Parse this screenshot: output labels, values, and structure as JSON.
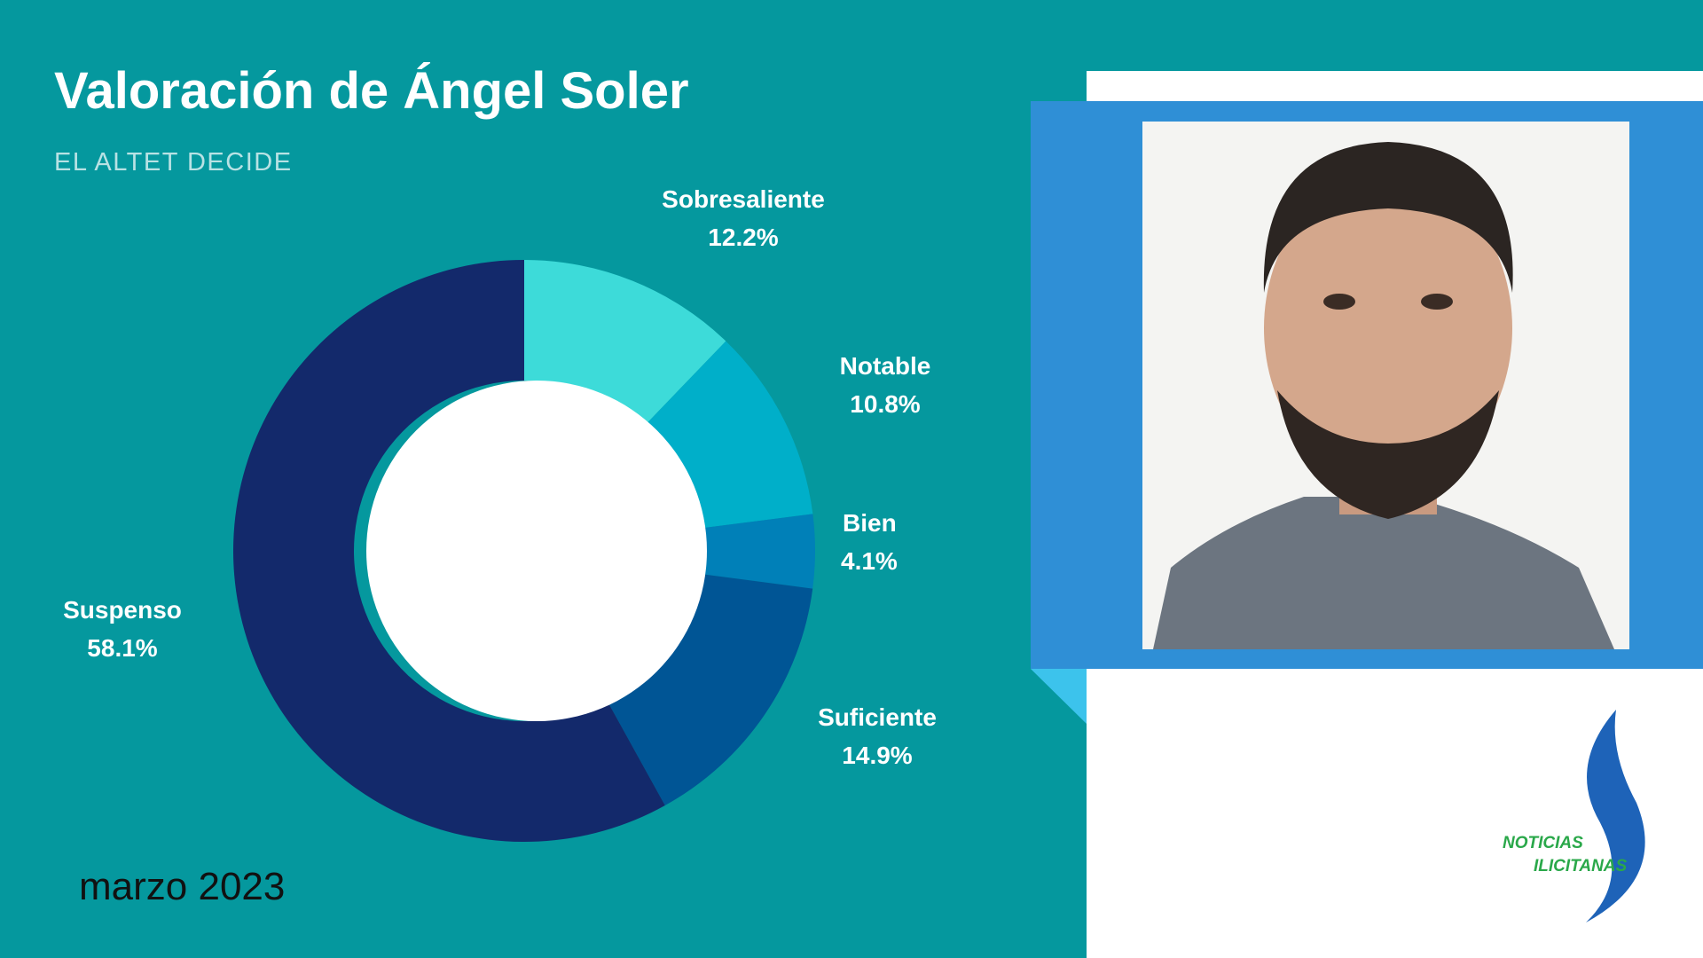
{
  "chart_data": {
    "type": "donut",
    "title": "Valoración de Ángel Soler",
    "subtitle": "EL ALTET DECIDE",
    "date": "marzo 2023",
    "categories": [
      "Sobresaliente",
      "Notable",
      "Bien",
      "Suficiente",
      "Suspenso"
    ],
    "values": [
      12.2,
      10.8,
      4.1,
      14.9,
      58.1
    ],
    "value_labels": [
      "12.2%",
      "10.8%",
      "4.1%",
      "14.9%",
      "58.1%"
    ],
    "colors": [
      "#3ddbd9",
      "#00afc9",
      "#0080b8",
      "#005595",
      "#13296b"
    ]
  },
  "logo": {
    "lines": [
      "NOTICIAS",
      "ILICITANAS"
    ]
  }
}
